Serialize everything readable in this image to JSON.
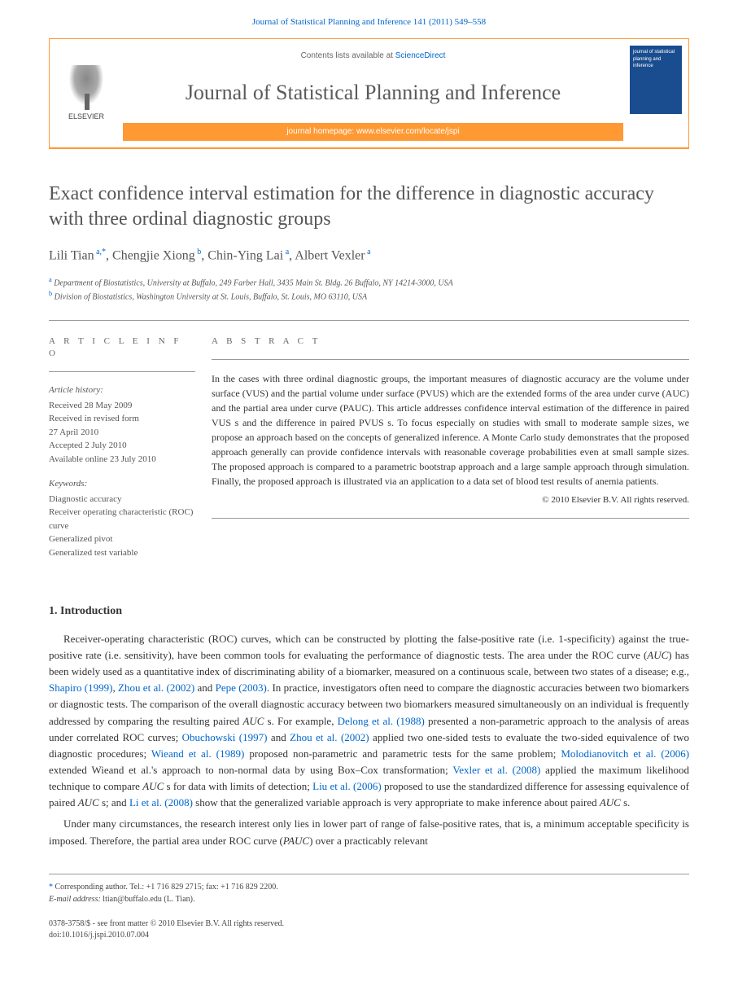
{
  "header": {
    "citation": "Journal of Statistical Planning and Inference 141 (2011) 549–558",
    "contents_prefix": "Contents lists available at ",
    "contents_link": "ScienceDirect",
    "journal_name": "Journal of Statistical Planning and Inference",
    "homepage_prefix": "journal homepage: ",
    "homepage_url": "www.elsevier.com/locate/jspi",
    "publisher": "ELSEVIER",
    "cover_text": "journal of statistical planning and inference"
  },
  "article": {
    "title": "Exact confidence interval estimation for the difference in diagnostic accuracy with three ordinal diagnostic groups",
    "authors_html": "Lili Tian<sup> a,*</sup>, Chengjie Xiong<sup> b</sup>, Chin-Ying Lai<sup> a</sup>, Albert Vexler<sup> a</sup>",
    "affiliations": [
      {
        "sup": "a",
        "text": "Department of Biostatistics, University at Buffalo, 249 Farber Hall, 3435 Main St. Bldg. 26 Buffalo, NY 14214-3000, USA"
      },
      {
        "sup": "b",
        "text": "Division of Biostatistics, Washington University at St. Louis, Buffalo, St. Louis, MO 63110, USA"
      }
    ]
  },
  "info": {
    "heading": "A R T I C L E  I N F O",
    "history_label": "Article history:",
    "history": [
      "Received 28 May 2009",
      "Received in revised form",
      "27 April 2010",
      "Accepted 2 July 2010",
      "Available online 23 July 2010"
    ],
    "keywords_label": "Keywords:",
    "keywords": [
      "Diagnostic accuracy",
      "Receiver operating characteristic (ROC) curve",
      "Generalized pivot",
      "Generalized test variable"
    ]
  },
  "abstract": {
    "heading": "A B S T R A C T",
    "text": "In the cases with three ordinal diagnostic groups, the important measures of diagnostic accuracy are the volume under surface (VUS) and the partial volume under surface (PVUS) which are the extended forms of the area under curve (AUC) and the partial area under curve (PAUC). This article addresses confidence interval estimation of the difference in paired VUS s and the difference in paired PVUS s. To focus especially on studies with small to moderate sample sizes, we propose an approach based on the concepts of generalized inference. A Monte Carlo study demonstrates that the proposed approach generally can provide confidence intervals with reasonable coverage probabilities even at small sample sizes. The proposed approach is compared to a parametric bootstrap approach and a large sample approach through simulation. Finally, the proposed approach is illustrated via an application to a data set of blood test results of anemia patients.",
    "copyright": "© 2010 Elsevier B.V. All rights reserved."
  },
  "body": {
    "section_number": "1.",
    "section_title": "Introduction",
    "para1_parts": [
      "Receiver-operating characteristic (ROC) curves, which can be constructed by plotting the false-positive rate (i.e. 1-specificity) against the true-positive rate (i.e. sensitivity), have been common tools for evaluating the performance of diagnostic tests. The area under the ROC curve (",
      "AUC",
      ") has been widely used as a quantitative index of discriminating ability of a biomarker, measured on a continuous scale, between two states of a disease; e.g., ",
      "Shapiro (1999)",
      ", ",
      "Zhou et al. (2002)",
      " and ",
      "Pepe (2003)",
      ". In practice, investigators often need to compare the diagnostic accuracies between two biomarkers or diagnostic tests. The comparison of the overall diagnostic accuracy between two biomarkers measured simultaneously on an individual is frequently addressed by comparing the resulting paired ",
      "AUC",
      " s. For example, ",
      "Delong et al. (1988)",
      " presented a non-parametric approach to the analysis of areas under correlated ROC curves; ",
      "Obuchowski (1997)",
      " and ",
      "Zhou et al. (2002)",
      " applied two one-sided tests to evaluate the two-sided equivalence of two diagnostic procedures; ",
      "Wieand et al. (1989)",
      " proposed non-parametric and parametric tests for the same problem; ",
      "Molodianovitch et al. (2006)",
      " extended Wieand et al.'s approach to non-normal data by using Box–Cox transformation; ",
      "Vexler et al. (2008)",
      " applied the maximum likelihood technique to compare ",
      "AUC",
      " s for data with limits of detection; ",
      "Liu et al. (2006)",
      " proposed to use the standardized difference for assessing equivalence of paired ",
      "AUC",
      " s; and ",
      "Li et al. (2008)",
      " show that the generalized variable approach is very appropriate to make inference about paired ",
      "AUC",
      " s."
    ],
    "para2": "Under many circumstances, the research interest only lies in lower part of range of false-positive rates, that is, a minimum acceptable specificity is imposed. Therefore, the partial area under ROC curve (PAUC) over a practicably relevant"
  },
  "footnotes": {
    "corr_label": "Corresponding author. Tel.: +1 716 829 2715; fax: +1 716 829 2200.",
    "email_label": "E-mail address:",
    "email": "ltian@buffalo.edu (L. Tian)."
  },
  "footer": {
    "issn": "0378-3758/$ - see front matter © 2010 Elsevier B.V. All rights reserved.",
    "doi": "doi:10.1016/j.jspi.2010.07.004"
  },
  "colors": {
    "link": "#0066cc",
    "accent": "#ff9933",
    "text_muted": "#555",
    "cover_bg": "#1a4d8f"
  }
}
